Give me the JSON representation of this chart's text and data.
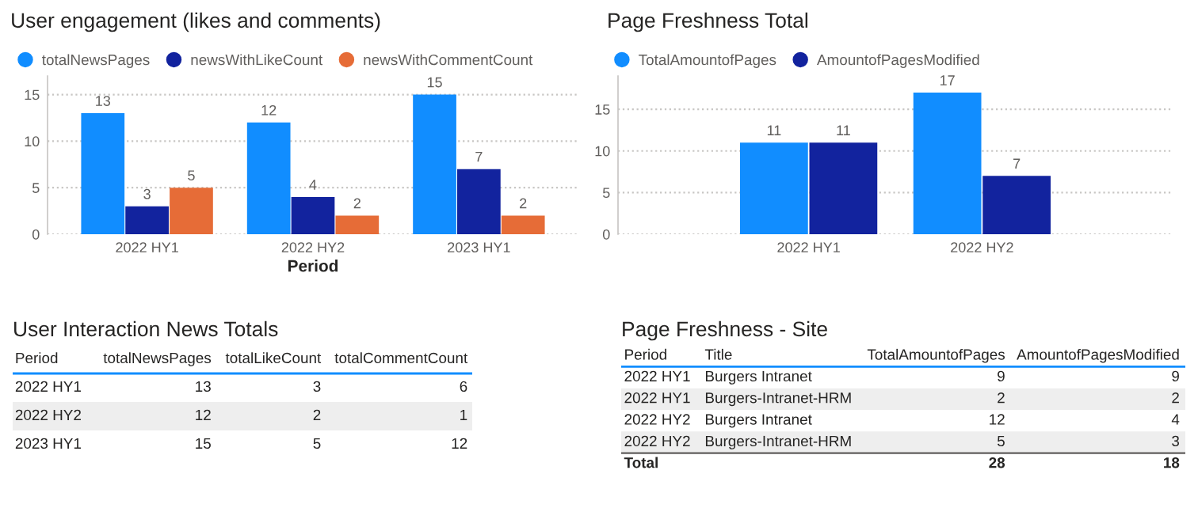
{
  "chart_data": [
    {
      "type": "bar",
      "title": "User engagement (likes and comments)",
      "xlabel": "Period",
      "categories": [
        "2022 HY1",
        "2022 HY2",
        "2023 HY1"
      ],
      "series": [
        {
          "name": "totalNewsPages",
          "color": "#118dff",
          "values": [
            13,
            12,
            15
          ]
        },
        {
          "name": "newsWithLikeCount",
          "color": "#12239e",
          "values": [
            3,
            4,
            7
          ]
        },
        {
          "name": "newsWithCommentCount",
          "color": "#e66c37",
          "values": [
            5,
            2,
            2
          ]
        }
      ],
      "ylim": [
        0,
        17
      ],
      "yticks": [
        0,
        5,
        10,
        15
      ],
      "grid": "y",
      "legend": "top left",
      "data_labels": true
    },
    {
      "type": "bar",
      "title": "Page Freshness Total",
      "categories": [
        "2022 HY1",
        "2022 HY2"
      ],
      "series": [
        {
          "name": "TotalAmountofPages",
          "color": "#118dff",
          "values": [
            11,
            17
          ]
        },
        {
          "name": "AmountofPagesModified",
          "color": "#12239e",
          "values": [
            11,
            7
          ]
        }
      ],
      "ylim": [
        0,
        19
      ],
      "yticks": [
        0,
        5,
        10,
        15
      ],
      "grid": "y",
      "legend": "top left",
      "data_labels": true
    },
    {
      "type": "other",
      "title": "User Interaction News Totals",
      "categories": [
        "Period",
        "totalNewsPages",
        "totalLikeCount",
        "totalCommentCount"
      ],
      "cell_labels": [
        [
          "2022 HY1",
          "13",
          "3",
          "6"
        ],
        [
          "2022 HY2",
          "12",
          "2",
          "1"
        ],
        [
          "2023 HY1",
          "15",
          "5",
          "12"
        ]
      ]
    },
    {
      "type": "other",
      "title": "Page Freshness - Site",
      "categories": [
        "Period",
        "Title",
        "TotalAmountofPages",
        "AmountofPagesModified"
      ],
      "cell_labels": [
        [
          "2022 HY1",
          "Burgers Intranet",
          "9",
          "9"
        ],
        [
          "2022 HY1",
          "Burgers-Intranet-HRM",
          "2",
          "2"
        ],
        [
          "2022 HY2",
          "Burgers Intranet",
          "12",
          "4"
        ],
        [
          "2022 HY2",
          "Burgers-Intranet-HRM",
          "5",
          "3"
        ]
      ],
      "totals": [
        "Total",
        null,
        "28",
        "18"
      ]
    }
  ]
}
